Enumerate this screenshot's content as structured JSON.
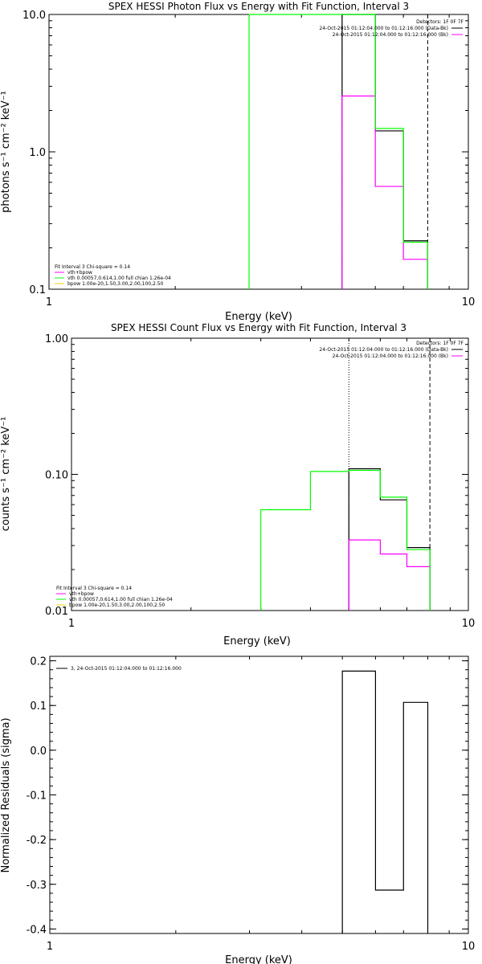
{
  "colors": {
    "background": "#ffffff",
    "axes": "#000000",
    "total_fit": "#000000",
    "data": "#ff00ff",
    "vth": "#00ff00",
    "bpow": "#ffcc00"
  },
  "chart_data": [
    {
      "id": "photon",
      "type": "histogram-step",
      "title": "SPEX HESSI Photon Flux vs Energy with Fit Function, Interval 3",
      "xlabel": "Energy (keV)",
      "ylabel": "photons s⁻¹ cm⁻² keV⁻¹",
      "xscale": "log",
      "yscale": "log",
      "xlim": [
        1,
        10
      ],
      "ylim": [
        0.1,
        10
      ],
      "xticks": [
        {
          "v": 1,
          "label": "1"
        },
        {
          "v": 10,
          "label": "10"
        }
      ],
      "yticks": [
        {
          "v": 0.1,
          "label": "0.1"
        },
        {
          "v": 1,
          "label": "1.0"
        },
        {
          "v": 10,
          "label": "10.0"
        }
      ],
      "vlines": [
        {
          "x": 5.0,
          "style": "dotted"
        },
        {
          "x": 8.0,
          "style": "dashed"
        }
      ],
      "series": [
        {
          "name": "total",
          "color": "#000000",
          "edges": [
            5.0,
            6.0,
            7.0,
            8.0
          ],
          "values": [
            10.0,
            1.42,
            0.225
          ]
        },
        {
          "name": "data",
          "color": "#ff00ff",
          "edges": [
            5.0,
            6.0,
            7.0,
            8.0
          ],
          "values": [
            2.55,
            0.56,
            0.165
          ]
        },
        {
          "name": "vth",
          "color": "#00ff00",
          "edges": [
            3.0,
            4.0,
            5.0,
            6.0,
            7.0,
            8.0
          ],
          "values": [
            10.0,
            10.0,
            10.0,
            1.48,
            0.22
          ]
        }
      ],
      "detectors": "Detectors: 1F 0F 7F",
      "time_lines": [
        {
          "text": "24-Oct-2015 01:12:04.000 to 01:12:16.000 (Data-Bk)",
          "color": "#000000"
        },
        {
          "text": "24-Oct-2015 01:12:04.000 to 01:12:16.000 (Bk)",
          "color": "#ff00ff"
        }
      ],
      "legend": {
        "header": "Fit Interval 3   Chi-square = 0.14",
        "entries": [
          {
            "text": "vth+bpow",
            "color": "#ff00ff"
          },
          {
            "text": "vth 0.00057,0.614,1.00   full chian 1.26e-04",
            "color": "#00ff00"
          },
          {
            "text": "bpow 1.00e-20,1.50,3.00,2.00,100,2.50",
            "color": "#ffcc00"
          }
        ]
      }
    },
    {
      "id": "count",
      "type": "histogram-step",
      "title": "SPEX HESSI Count Flux vs Energy with Fit Function, Interval 3",
      "xlabel": "Energy (keV)",
      "ylabel": "counts s⁻¹ cm⁻² keV⁻¹",
      "xscale": "log",
      "yscale": "log",
      "xlim": [
        1,
        10
      ],
      "ylim": [
        0.01,
        1
      ],
      "xticks": [
        {
          "v": 1,
          "label": "1"
        },
        {
          "v": 10,
          "label": "10"
        }
      ],
      "yticks": [
        {
          "v": 0.01,
          "label": "0.01"
        },
        {
          "v": 0.1,
          "label": "0.10"
        },
        {
          "v": 1,
          "label": "1.00"
        }
      ],
      "vlines": [
        {
          "x": 5.0,
          "style": "dotted"
        },
        {
          "x": 8.0,
          "style": "dashed"
        }
      ],
      "series": [
        {
          "name": "total",
          "color": "#000000",
          "edges": [
            5.0,
            6.0,
            7.0,
            8.0
          ],
          "values": [
            0.11,
            0.065,
            0.029
          ]
        },
        {
          "name": "data",
          "color": "#ff00ff",
          "edges": [
            5.0,
            6.0,
            7.0,
            8.0
          ],
          "values": [
            0.033,
            0.026,
            0.021
          ]
        },
        {
          "name": "vth",
          "color": "#00ff00",
          "edges": [
            3.0,
            4.0,
            5.0,
            6.0,
            7.0,
            8.0
          ],
          "values": [
            0.055,
            0.105,
            0.107,
            0.068,
            0.028
          ]
        }
      ],
      "detectors": "Detectors: 1F 0F 7F",
      "time_lines": [
        {
          "text": "24-Oct-2015 01:12:04.000 to 01:12:16.000 (Data-Bk)",
          "color": "#000000"
        },
        {
          "text": "24-Oct-2015 01:12:04.000 to 01:12:16.000 (Bk)",
          "color": "#ff00ff"
        }
      ],
      "legend": {
        "header": "Fit Interval 3   Chi-square = 0.14",
        "entries": [
          {
            "text": "vth+bpow",
            "color": "#ff00ff"
          },
          {
            "text": "vth 0.00057,0.614,1.00   full chian 1.26e-04",
            "color": "#00ff00"
          },
          {
            "text": "bpow 1.00e-20,1.50,3.00,2.00,100,2.50",
            "color": "#ffcc00"
          }
        ]
      }
    },
    {
      "id": "residuals",
      "type": "histogram-step",
      "title": "",
      "xlabel": "Energy (keV)",
      "ylabel": "Normalized Residuals (sigma)",
      "xscale": "log",
      "yscale": "linear",
      "xlim": [
        1,
        10
      ],
      "ylim": [
        -0.41,
        0.21
      ],
      "xticks": [
        {
          "v": 1,
          "label": "1"
        },
        {
          "v": 10,
          "label": "10"
        }
      ],
      "yticks": [
        {
          "v": 0.2,
          "label": "0.2"
        },
        {
          "v": 0.1,
          "label": "0.1"
        },
        {
          "v": 0.0,
          "label": "0.0"
        },
        {
          "v": -0.1,
          "label": "-0.1"
        },
        {
          "v": -0.2,
          "label": "-0.2"
        },
        {
          "v": -0.3,
          "label": "-0.3"
        },
        {
          "v": -0.4,
          "label": "-0.4"
        }
      ],
      "vlines": [],
      "series": [
        {
          "name": "residuals",
          "color": "#000000",
          "edges": [
            5.0,
            6.0,
            7.0,
            8.0
          ],
          "values": [
            0.177,
            -0.313,
            0.107
          ],
          "baseline": -0.41
        }
      ],
      "detectors": "",
      "time_lines": [],
      "legend": {
        "header": "",
        "entries": [
          {
            "text": "3, 24-Oct-2015 01:12:04.000 to 01:12:16.000",
            "color": "#000000"
          }
        ]
      }
    }
  ]
}
